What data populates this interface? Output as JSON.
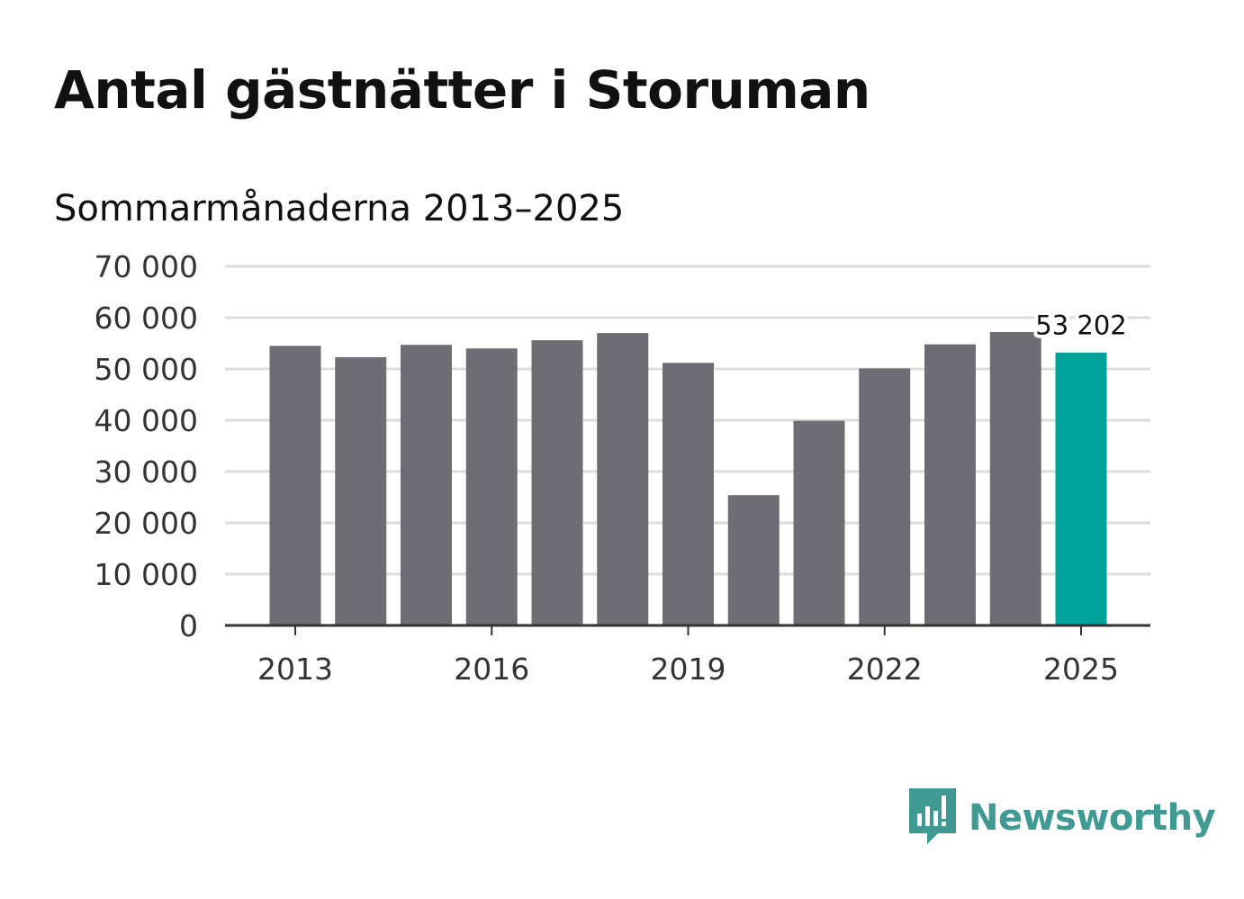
{
  "title": "Antal gästnätter i Storuman",
  "subtitle": "Sommarmånaderna 2013–2025",
  "brand": {
    "name": "Newsworthy",
    "color": "#3f9a94",
    "icon": "newsworthy-logo-icon"
  },
  "colors": {
    "bar": "#6e6d73",
    "highlight": "#00a39a",
    "grid": "#dddddd",
    "axis": "#333333"
  },
  "chart_data": {
    "type": "bar",
    "categories": [
      "2013",
      "2014",
      "2015",
      "2016",
      "2017",
      "2018",
      "2019",
      "2020",
      "2021",
      "2022",
      "2023",
      "2024",
      "2025"
    ],
    "values": [
      54500,
      52300,
      54700,
      54000,
      55600,
      57000,
      51200,
      25400,
      39900,
      50100,
      54800,
      57200,
      53202
    ],
    "x_tick_labels": [
      "2013",
      "2016",
      "2019",
      "2022",
      "2025"
    ],
    "y_ticks": [
      0,
      10000,
      20000,
      30000,
      40000,
      50000,
      60000,
      70000
    ],
    "y_tick_labels": [
      "0",
      "10 000",
      "20 000",
      "30 000",
      "40 000",
      "50 000",
      "60 000",
      "70 000"
    ],
    "ylim": [
      0,
      70000
    ],
    "highlight_category": "2025",
    "data_labels": [
      {
        "category": "2025",
        "text": "53 202"
      }
    ],
    "grid": true,
    "legend": "none",
    "xlabel": "",
    "ylabel": ""
  }
}
